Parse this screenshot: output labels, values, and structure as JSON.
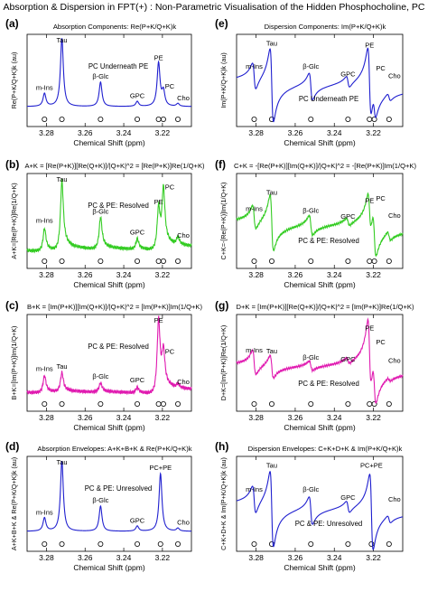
{
  "title": "Absorption & Dispersion in FPT(+) : Non-Parametric Visualisation of the Hidden Phosphocholine, PC",
  "chart_data": [
    {
      "panel": "(a)",
      "type": "line",
      "color": "#1f1fcf",
      "style": "absorption",
      "title": "Absorption Components:  Re(P+K/Q+K)k",
      "ylabel": "Re(P+K/Q+K)k (au)",
      "xlabel": "Chemical Shift (ppm)",
      "xlim": [
        3.29,
        3.205
      ],
      "xticks": [
        3.28,
        3.26,
        3.24,
        3.22
      ],
      "annotation": "PC Underneath PE",
      "peaks": [
        {
          "label": "m-Ins",
          "ppm": 3.281,
          "height": 0.18
        },
        {
          "label": "Tau",
          "ppm": 3.272,
          "height": 0.95
        },
        {
          "label": "β-Glc",
          "ppm": 3.252,
          "height": 0.34
        },
        {
          "label": "GPC",
          "ppm": 3.233,
          "height": 0.07
        },
        {
          "label": "PE",
          "ppm": 3.222,
          "height": 0.6
        },
        {
          "label": "PC",
          "ppm": 3.2195,
          "height": 0.2
        },
        {
          "label": "Cho",
          "ppm": 3.212,
          "height": 0.04
        }
      ]
    },
    {
      "panel": "(e)",
      "type": "line",
      "color": "#1f1fcf",
      "style": "dispersion",
      "title": "Dispersion Components:  Im(P+K/Q+K)k",
      "ylabel": "Im(P+K/Q+K)k (au)",
      "xlabel": "Chemical Shift (ppm)",
      "xlim": [
        3.29,
        3.205
      ],
      "xticks": [
        3.28,
        3.26,
        3.24,
        3.22
      ],
      "annotation": "PC Underneath PE",
      "peaks": [
        {
          "label": "m-Ins",
          "ppm": 3.281,
          "height": 0.35
        },
        {
          "label": "Tau",
          "ppm": 3.272,
          "height": 0.95
        },
        {
          "label": "β-Glc",
          "ppm": 3.252,
          "height": 0.35
        },
        {
          "label": "GPC",
          "ppm": 3.233,
          "height": 0.15
        },
        {
          "label": "PE",
          "ppm": 3.222,
          "height": 0.9
        },
        {
          "label": "PC",
          "ppm": 3.2195,
          "height": 0.3
        },
        {
          "label": "Cho",
          "ppm": 3.212,
          "height": 0.1
        }
      ]
    },
    {
      "panel": "(b)",
      "type": "line",
      "color": "#33cc22",
      "style": "absorption-resolved",
      "title": "A+K = [Re(P+K)][Re(Q+K)]/|Q+K|^2 = [Re(P+K)]Re(1/Q+K)",
      "ylabel": "A+K=[Re(P+K)]Re(1/Q+K)",
      "xlabel": "Chemical Shift (ppm)",
      "xlim": [
        3.29,
        3.205
      ],
      "xticks": [
        3.28,
        3.26,
        3.24,
        3.22
      ],
      "annotation": "PC & PE: Resolved",
      "peaks": [
        {
          "label": "m-Ins",
          "ppm": 3.281,
          "height": 0.3
        },
        {
          "label": "Tau",
          "ppm": 3.272,
          "height": 0.92
        },
        {
          "label": "β-Glc",
          "ppm": 3.252,
          "height": 0.42
        },
        {
          "label": "GPC",
          "ppm": 3.233,
          "height": 0.14
        },
        {
          "label": "PE",
          "ppm": 3.222,
          "height": 0.55
        },
        {
          "label": "PC",
          "ppm": 3.2195,
          "height": 0.75
        },
        {
          "label": "Cho",
          "ppm": 3.212,
          "height": 0.1
        }
      ]
    },
    {
      "panel": "(f)",
      "type": "line",
      "color": "#33cc22",
      "style": "dispersion-resolved",
      "title": "C+K = -[Re(P+K)][Im(Q+K)]/|Q+K|^2 = -[Re(P+K)]Im(1/Q+K)",
      "ylabel": "C+K=-[Re(P+K)]Im(1/Q+K)",
      "xlabel": "Chemical Shift (ppm)",
      "xlim": [
        3.29,
        3.205
      ],
      "xticks": [
        3.28,
        3.26,
        3.24,
        3.22
      ],
      "annotation": "PC & PE: Resolved",
      "peaks": [
        {
          "label": "m-Ins",
          "ppm": 3.281,
          "height": 0.3
        },
        {
          "label": "Tau",
          "ppm": 3.272,
          "height": 0.7
        },
        {
          "label": "β-Glc",
          "ppm": 3.252,
          "height": 0.25
        },
        {
          "label": "GPC",
          "ppm": 3.233,
          "height": 0.1
        },
        {
          "label": "PE",
          "ppm": 3.222,
          "height": 0.5
        },
        {
          "label": "PC",
          "ppm": 3.2195,
          "height": 0.55
        },
        {
          "label": "Cho",
          "ppm": 3.212,
          "height": 0.12
        }
      ]
    },
    {
      "panel": "(c)",
      "type": "line",
      "color": "#e01ab0",
      "style": "absorption-resolved",
      "title": "B+K = [Im(P+K)][Im(Q+K)]/|Q+K|^2 = [Im(P+K)]Im(1/Q+K)",
      "ylabel": "B+K=[Im(P+K)]Im(1/Q+K)",
      "xlabel": "Chemical Shift (ppm)",
      "xlim": [
        3.29,
        3.205
      ],
      "xticks": [
        3.28,
        3.26,
        3.24,
        3.22
      ],
      "annotation": "PC & PE: Resolved",
      "peaks": [
        {
          "label": "m-Ins",
          "ppm": 3.281,
          "height": 0.22
        },
        {
          "label": "Tau",
          "ppm": 3.272,
          "height": 0.25
        },
        {
          "label": "β-Glc",
          "ppm": 3.252,
          "height": 0.12
        },
        {
          "label": "GPC",
          "ppm": 3.233,
          "height": 0.07
        },
        {
          "label": "PE",
          "ppm": 3.222,
          "height": 0.95
        },
        {
          "label": "PC",
          "ppm": 3.2195,
          "height": 0.45
        },
        {
          "label": "Cho",
          "ppm": 3.212,
          "height": 0.05
        }
      ]
    },
    {
      "panel": "(g)",
      "type": "line",
      "color": "#e01ab0",
      "style": "dispersion-resolved",
      "title": "D+K = [Im(P+K)][Re(Q+K)]/|Q+K|^2 = [Im(P+K)]Re(1/Q+K)",
      "ylabel": "D+K=[Im(P+K)]Re(1/Q+K)",
      "xlabel": "Chemical Shift (ppm)",
      "xlim": [
        3.29,
        3.205
      ],
      "xticks": [
        3.28,
        3.26,
        3.24,
        3.22
      ],
      "annotation": "PC & PE: Resolved",
      "peaks": [
        {
          "label": "m-Ins",
          "ppm": 3.281,
          "height": 0.3
        },
        {
          "label": "Tau",
          "ppm": 3.272,
          "height": 0.28
        },
        {
          "label": "β-Glc",
          "ppm": 3.252,
          "height": 0.12
        },
        {
          "label": "GPC",
          "ppm": 3.233,
          "height": 0.08
        },
        {
          "label": "PE",
          "ppm": 3.222,
          "height": 0.85
        },
        {
          "label": "PC",
          "ppm": 3.2195,
          "height": 0.5
        },
        {
          "label": "Cho",
          "ppm": 3.212,
          "height": 0.05
        }
      ]
    },
    {
      "panel": "(d)",
      "type": "line",
      "color": "#1f1fcf",
      "style": "absorption",
      "title": "Absorption Envelopes:  A+K+B+K & Re(P+K/Q+K)k",
      "ylabel": "A+K+B+K & Re(P+K/Q+K)k (au)",
      "xlabel": "Chemical Shift (ppm)",
      "xlim": [
        3.29,
        3.205
      ],
      "xticks": [
        3.28,
        3.26,
        3.24,
        3.22
      ],
      "annotation": "PC & PE: Unresolved",
      "peaks": [
        {
          "label": "m-Ins",
          "ppm": 3.281,
          "height": 0.18
        },
        {
          "label": "Tau",
          "ppm": 3.272,
          "height": 0.95
        },
        {
          "label": "β-Glc",
          "ppm": 3.252,
          "height": 0.34
        },
        {
          "label": "GPC",
          "ppm": 3.233,
          "height": 0.07
        },
        {
          "label": "PC+PE",
          "ppm": 3.221,
          "height": 0.78
        },
        {
          "label": "Cho",
          "ppm": 3.212,
          "height": 0.04
        }
      ]
    },
    {
      "panel": "(h)",
      "type": "line",
      "color": "#1f1fcf",
      "style": "dispersion",
      "title": "Dispersion Envelopes:  C+K+D+K & Im(P+K/Q+K)k",
      "ylabel": "C+K+D+K & Im(P+K/Q+K)k (au)",
      "xlabel": "Chemical Shift (ppm)",
      "xlim": [
        3.29,
        3.205
      ],
      "xticks": [
        3.28,
        3.26,
        3.24,
        3.22
      ],
      "annotation": "PC & PE: Unresolved",
      "peaks": [
        {
          "label": "m-Ins",
          "ppm": 3.281,
          "height": 0.35
        },
        {
          "label": "Tau",
          "ppm": 3.272,
          "height": 0.95
        },
        {
          "label": "β-Glc",
          "ppm": 3.252,
          "height": 0.35
        },
        {
          "label": "GPC",
          "ppm": 3.233,
          "height": 0.15
        },
        {
          "label": "PC+PE",
          "ppm": 3.221,
          "height": 0.95
        },
        {
          "label": "Cho",
          "ppm": 3.212,
          "height": 0.1
        }
      ]
    }
  ]
}
